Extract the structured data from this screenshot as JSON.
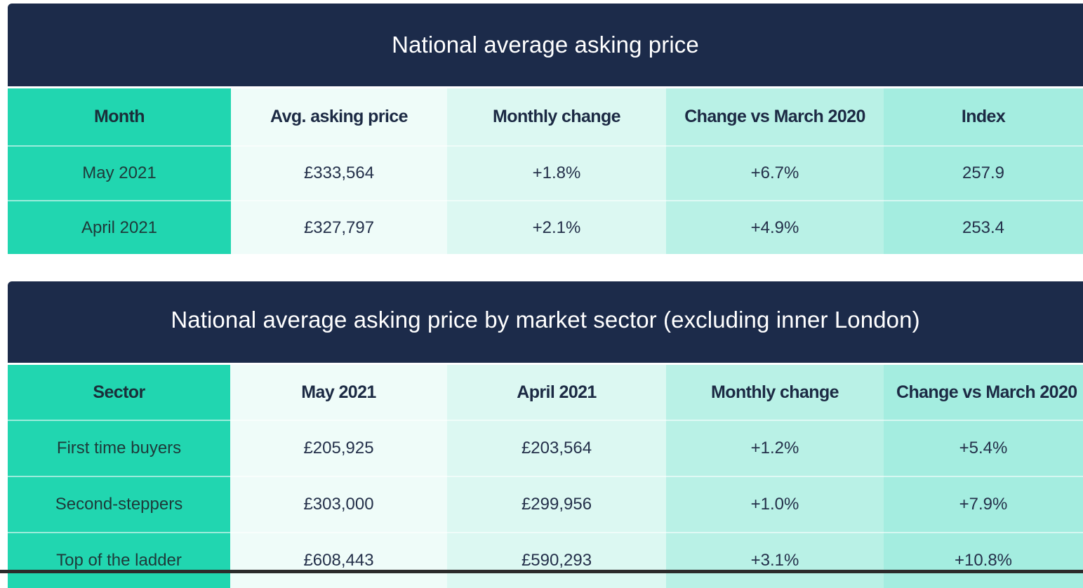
{
  "chart_data": [
    {
      "type": "table",
      "title": "National average asking price",
      "columns": [
        "Month",
        "Avg. asking price",
        "Monthly change",
        "Change vs March 2020",
        "Index"
      ],
      "rows": [
        [
          "May 2021",
          "£333,564",
          "+1.8%",
          "+6.7%",
          "257.9"
        ],
        [
          "April 2021",
          "£327,797",
          "+2.1%",
          "+4.9%",
          "253.4"
        ]
      ]
    },
    {
      "type": "table",
      "title": "National average asking price by market sector (excluding inner London)",
      "columns": [
        "Sector",
        "May 2021",
        "April 2021",
        "Monthly change",
        "Change vs March 2020"
      ],
      "rows": [
        [
          "First time buyers",
          "£205,925",
          "£203,564",
          "+1.2%",
          "+5.4%"
        ],
        [
          "Second-steppers",
          "£303,000",
          "£299,956",
          "+1.0%",
          "+7.9%"
        ],
        [
          "Top of the ladder",
          "£608,443",
          "£590,293",
          "+3.1%",
          "+10.8%"
        ]
      ]
    }
  ],
  "colors": {
    "title_bar": "#1c2b4a",
    "first_column": "#21d6b0",
    "column_tints": [
      "#effcf9",
      "#dcf8f2",
      "#b9f1e6",
      "#a4ede0"
    ]
  }
}
